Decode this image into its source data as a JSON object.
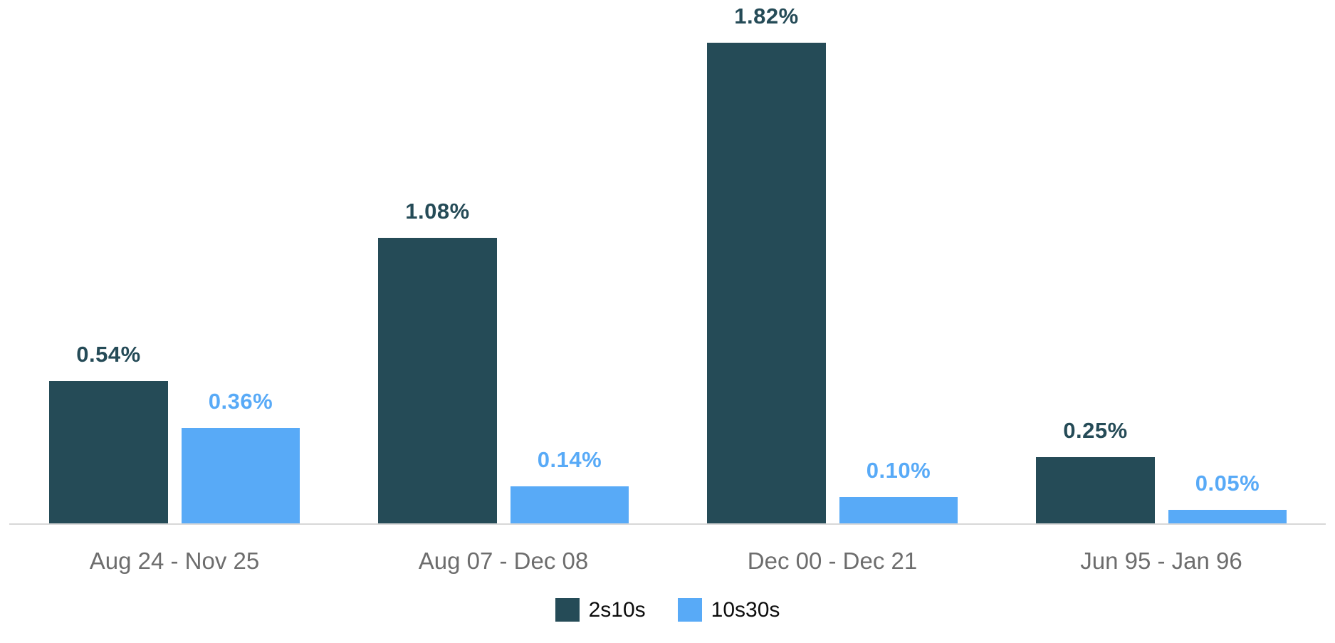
{
  "chart_data": {
    "type": "bar",
    "title": "",
    "xlabel": "",
    "ylabel": "",
    "grid": false,
    "axis_line_color": "#d8d8d8",
    "background_color": "#ffffff",
    "x_label_color": "#6d6d6d",
    "legend_position": "bottom",
    "ylim": [
      0,
      1.82
    ],
    "categories": [
      "Aug 24 - Nov 25",
      "Aug 07 - Dec 08",
      "Dec 00 - Dec 21",
      "Jun 95 - Jan 96"
    ],
    "series": [
      {
        "name": "2s10s",
        "color": "#254b57",
        "label_color": "#254b57",
        "values": [
          0.54,
          1.08,
          1.82,
          0.25
        ],
        "labels": [
          "0.54%",
          "1.08%",
          "1.82%",
          "0.25%"
        ]
      },
      {
        "name": "10s30s",
        "color": "#58aaf7",
        "label_color": "#58aaf7",
        "values": [
          0.36,
          0.14,
          0.1,
          0.05
        ],
        "labels": [
          "0.36%",
          "0.14%",
          "0.10%",
          "0.05%"
        ]
      }
    ]
  }
}
